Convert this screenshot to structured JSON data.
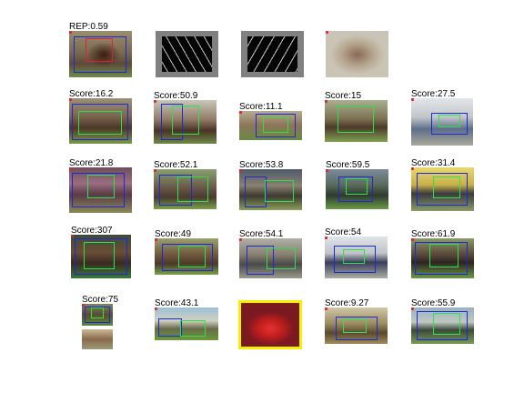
{
  "header": {
    "ap_label": "REP:0.59"
  },
  "detections": [
    {
      "score": "Score:16.2"
    },
    {
      "score": "Score:50.9"
    },
    {
      "score": "Score:11.1"
    },
    {
      "score": "Score:15"
    },
    {
      "score": "Score:27.5"
    },
    {
      "score": "Score:21.8"
    },
    {
      "score": "Score:52.1"
    },
    {
      "score": "Score:53.8"
    },
    {
      "score": "Score:59.5"
    },
    {
      "score": "Score:31.4"
    },
    {
      "score": "Score:307"
    },
    {
      "score": "Score:49"
    },
    {
      "score": "Score:54.1"
    },
    {
      "score": "Score:54"
    },
    {
      "score": "Score:61.9"
    },
    {
      "score": "Score:75"
    },
    {
      "score": "Score:43.1"
    },
    {
      "score": ""
    },
    {
      "score": "Score:9.27"
    },
    {
      "score": "Score:55.9"
    }
  ],
  "colors": {
    "box_blue": "#1a2bd6",
    "box_green": "#2ee04a",
    "box_red": "#e0222a",
    "hog_border": "#808080",
    "highlight_frame": "#f2f200"
  }
}
